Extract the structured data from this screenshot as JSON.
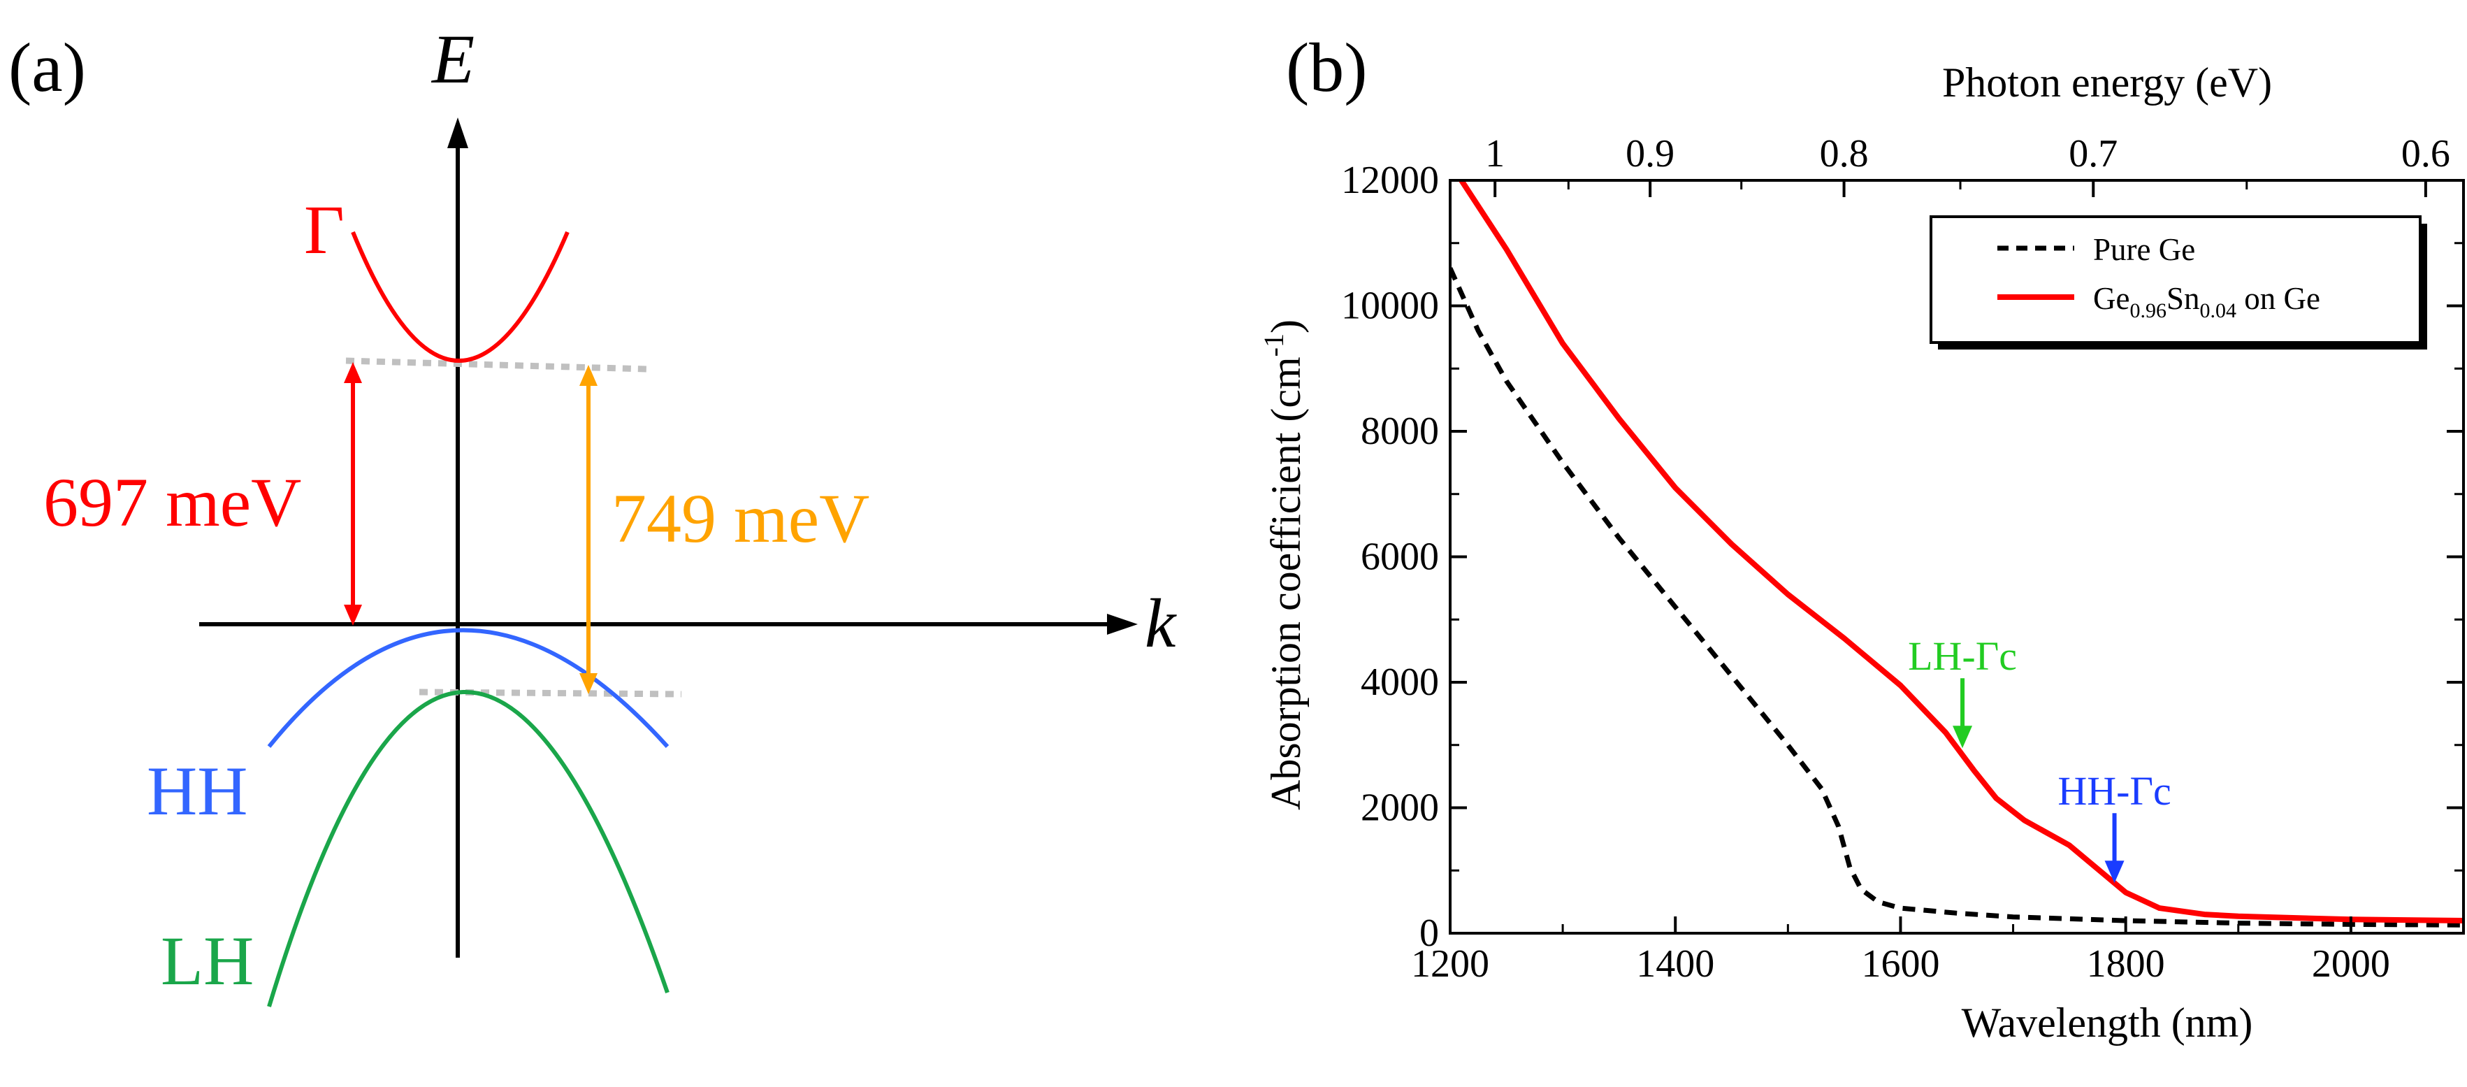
{
  "panel_a": {
    "label": "(a)",
    "e_axis_label": "E",
    "k_axis_label": "k",
    "bands": {
      "gamma": "Γ",
      "hh": "HH",
      "lh": "LH"
    },
    "gaps": {
      "hh_gap": "697 meV",
      "lh_gap": "749 meV"
    },
    "colors": {
      "gamma": "#ff0000",
      "hh": "#3366ff",
      "lh": "#1aa64a",
      "orange": "#ffa300",
      "guide": "#c0c0c0"
    }
  },
  "panel_b": {
    "label": "(b)",
    "arrows": {
      "lh": "LH-Γc",
      "hh": "HH-Γc"
    },
    "arrow_colors": {
      "lh": "#22cc22",
      "hh": "#1a3cff"
    },
    "legend": {
      "pure_ge": "Pure Ge",
      "gesn_main": "Ge",
      "gesn_sub1": "0.96",
      "gesn_mid": "Sn",
      "gesn_sub2": "0.04",
      "gesn_tail": " on Ge"
    }
  },
  "chart_data": {
    "type": "line",
    "title": "",
    "xlabel": "Wavelength (nm)",
    "ylabel_main": "Absorption coefficient (cm",
    "ylabel_sup": "-1",
    "ylabel_close": ")",
    "top_axis_label": "Photon energy (eV)",
    "xlim": [
      1200,
      2100
    ],
    "ylim": [
      0,
      12000
    ],
    "x_ticks": [
      "1200",
      "1400",
      "1600",
      "1800",
      "2000"
    ],
    "y_ticks": [
      "0",
      "2000",
      "4000",
      "6000",
      "8000",
      "10000",
      "12000"
    ],
    "top_ticks": [
      {
        "label": "1",
        "ev": 1.0
      },
      {
        "label": "0.9",
        "ev": 0.9
      },
      {
        "label": "0.8",
        "ev": 0.8
      },
      {
        "label": "0.7",
        "ev": 0.7
      },
      {
        "label": "0.6",
        "ev": 0.6
      }
    ],
    "legend_position": "top-right",
    "series": [
      {
        "name": "Pure Ge",
        "style": "dashed",
        "color": "#000000",
        "x": [
          1200,
          1225,
          1250,
          1300,
          1350,
          1400,
          1450,
          1500,
          1530,
          1545,
          1555,
          1565,
          1580,
          1600,
          1650,
          1700,
          1800,
          1900,
          2000,
          2100
        ],
        "y": [
          10600,
          9600,
          8800,
          7500,
          6300,
          5200,
          4100,
          3000,
          2300,
          1700,
          1050,
          700,
          500,
          400,
          320,
          260,
          200,
          160,
          140,
          130
        ]
      },
      {
        "name": "Ge0.96Sn0.04 on Ge",
        "style": "solid",
        "color": "#ff0000",
        "x": [
          1210,
          1250,
          1300,
          1350,
          1400,
          1450,
          1500,
          1550,
          1600,
          1640,
          1665,
          1685,
          1710,
          1750,
          1780,
          1800,
          1830,
          1870,
          1900,
          2000,
          2100
        ],
        "y": [
          12000,
          10900,
          9400,
          8200,
          7100,
          6200,
          5400,
          4700,
          3950,
          3200,
          2600,
          2150,
          1800,
          1400,
          950,
          650,
          400,
          300,
          270,
          220,
          200
        ]
      }
    ],
    "annotations": [
      {
        "text": "LH-Γc",
        "x": 1655,
        "y": 2950
      },
      {
        "text": "HH-Γc",
        "x": 1790,
        "y": 800
      }
    ]
  }
}
